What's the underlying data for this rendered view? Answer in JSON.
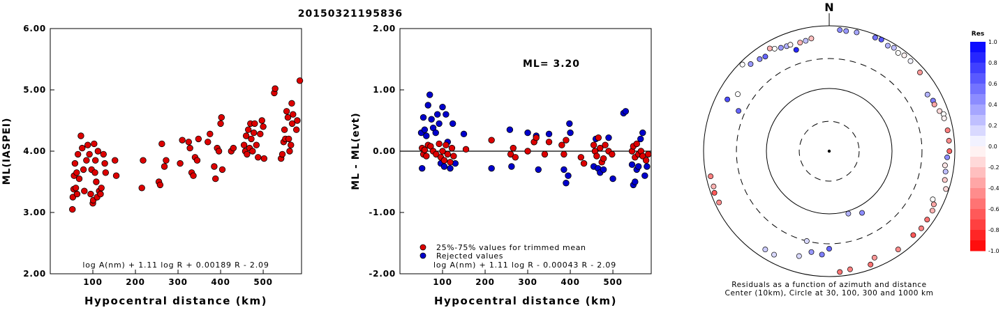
{
  "page_title": "20150321195836",
  "colors": {
    "accepted": "#dd0000",
    "rejected": "#0000cc",
    "marker_edge": "#000000",
    "scale_positive": "#0000ff",
    "scale_negative": "#ff0000"
  },
  "chart_data": [
    {
      "type": "scatter",
      "name": "ml-distance",
      "xlabel": "Hypocentral distance (km)",
      "ylabel": "ML(IASPEI)",
      "xlim": [
        0,
        590
      ],
      "ylim": [
        2.0,
        6.0
      ],
      "xticks": [
        {
          "value": 100,
          "label": "100"
        },
        {
          "value": 200,
          "label": "200"
        },
        {
          "value": 300,
          "label": "300"
        },
        {
          "value": 400,
          "label": "400"
        },
        {
          "value": 500,
          "label": "500"
        }
      ],
      "yticks": [
        {
          "value": 2.0,
          "label": "2.00"
        },
        {
          "value": 3.0,
          "label": "3.00"
        },
        {
          "value": 4.0,
          "label": "4.00"
        },
        {
          "value": 5.0,
          "label": "5.00"
        },
        {
          "value": 6.0,
          "label": "6.00"
        }
      ],
      "formula": "log A(nm) + 1.11 log R + 0.00189 R - 2.09",
      "points": [
        [
          52,
          3.05
        ],
        [
          53,
          3.25
        ],
        [
          55,
          3.38
        ],
        [
          56,
          3.6
        ],
        [
          58,
          3.8
        ],
        [
          60,
          3.4
        ],
        [
          62,
          3.65
        ],
        [
          63,
          3.3
        ],
        [
          65,
          3.95
        ],
        [
          68,
          3.55
        ],
        [
          72,
          4.25
        ],
        [
          75,
          4.05
        ],
        [
          78,
          3.7
        ],
        [
          80,
          3.35
        ],
        [
          85,
          3.85
        ],
        [
          88,
          4.1
        ],
        [
          92,
          3.95
        ],
        [
          95,
          3.3
        ],
        [
          97,
          3.7
        ],
        [
          100,
          3.15
        ],
        [
          101,
          3.2
        ],
        [
          103,
          4.12
        ],
        [
          105,
          3.65
        ],
        [
          106,
          3.85
        ],
        [
          108,
          3.5
        ],
        [
          110,
          3.25
        ],
        [
          112,
          4.0
        ],
        [
          115,
          3.35
        ],
        [
          118,
          3.3
        ],
        [
          120,
          3.4
        ],
        [
          125,
          3.95
        ],
        [
          128,
          3.8
        ],
        [
          130,
          3.65
        ],
        [
          152,
          3.85
        ],
        [
          155,
          3.6
        ],
        [
          215,
          3.4
        ],
        [
          218,
          3.85
        ],
        [
          255,
          3.5
        ],
        [
          258,
          3.45
        ],
        [
          262,
          4.12
        ],
        [
          268,
          3.75
        ],
        [
          272,
          3.85
        ],
        [
          305,
          3.8
        ],
        [
          310,
          4.18
        ],
        [
          325,
          4.15
        ],
        [
          328,
          4.05
        ],
        [
          332,
          3.65
        ],
        [
          336,
          3.6
        ],
        [
          340,
          3.9
        ],
        [
          345,
          3.85
        ],
        [
          348,
          4.2
        ],
        [
          370,
          4.15
        ],
        [
          375,
          4.28
        ],
        [
          385,
          3.75
        ],
        [
          388,
          3.55
        ],
        [
          392,
          4.05
        ],
        [
          396,
          4.0
        ],
        [
          400,
          4.45
        ],
        [
          402,
          4.55
        ],
        [
          404,
          3.7
        ],
        [
          425,
          4.0
        ],
        [
          430,
          4.05
        ],
        [
          455,
          4.1
        ],
        [
          458,
          4.0
        ],
        [
          460,
          4.25
        ],
        [
          462,
          3.95
        ],
        [
          465,
          4.35
        ],
        [
          468,
          4.05
        ],
        [
          470,
          4.45
        ],
        [
          472,
          4.2
        ],
        [
          475,
          4.0
        ],
        [
          478,
          4.3
        ],
        [
          480,
          4.45
        ],
        [
          484,
          4.1
        ],
        [
          488,
          3.9
        ],
        [
          493,
          4.28
        ],
        [
          497,
          4.5
        ],
        [
          500,
          4.4
        ],
        [
          502,
          3.88
        ],
        [
          526,
          4.95
        ],
        [
          528,
          5.02
        ],
        [
          542,
          3.88
        ],
        [
          545,
          3.95
        ],
        [
          548,
          4.15
        ],
        [
          550,
          4.35
        ],
        [
          552,
          4.2
        ],
        [
          555,
          4.65
        ],
        [
          558,
          4.55
        ],
        [
          560,
          4.2
        ],
        [
          562,
          4.0
        ],
        [
          565,
          4.1
        ],
        [
          567,
          4.78
        ],
        [
          568,
          4.45
        ],
        [
          570,
          4.6
        ],
        [
          578,
          4.35
        ],
        [
          580,
          4.5
        ],
        [
          586,
          5.15
        ]
      ]
    },
    {
      "type": "scatter",
      "name": "residual-distance",
      "xlabel": "Hypocentral distance (km)",
      "ylabel": "ML - ML(evt)",
      "xlim": [
        0,
        590
      ],
      "ylim": [
        -2.0,
        2.0
      ],
      "xticks": [
        {
          "value": 100,
          "label": "100"
        },
        {
          "value": 200,
          "label": "200"
        },
        {
          "value": 300,
          "label": "300"
        },
        {
          "value": 400,
          "label": "400"
        },
        {
          "value": 500,
          "label": "500"
        }
      ],
      "yticks": [
        {
          "value": -2.0,
          "label": "-2.00"
        },
        {
          "value": -1.0,
          "label": "-1.00"
        },
        {
          "value": 0.0,
          "label": "0.00"
        },
        {
          "value": 1.0,
          "label": "1.00"
        },
        {
          "value": 2.0,
          "label": "2.00"
        }
      ],
      "ml_label": "ML= 3.20",
      "formula": "log A(nm) + 1.11 log R - 0.00043 R - 2.09",
      "legend": [
        {
          "label": "25%-75% values for trimmed mean",
          "color": "#dd0000"
        },
        {
          "label": "Rejected values",
          "color": "#0000cc"
        }
      ],
      "accepted": [
        [
          52,
          0.05
        ],
        [
          55,
          -0.05
        ],
        [
          58,
          0.02
        ],
        [
          62,
          -0.08
        ],
        [
          66,
          0.1
        ],
        [
          72,
          0.08
        ],
        [
          78,
          0.0
        ],
        [
          85,
          -0.05
        ],
        [
          92,
          0.12
        ],
        [
          96,
          -0.1
        ],
        [
          100,
          0.0
        ],
        [
          104,
          -0.15
        ],
        [
          108,
          0.1
        ],
        [
          112,
          -0.05
        ],
        [
          118,
          -0.18
        ],
        [
          122,
          0.05
        ],
        [
          126,
          -0.08
        ],
        [
          155,
          0.03
        ],
        [
          215,
          0.18
        ],
        [
          260,
          -0.05
        ],
        [
          266,
          0.05
        ],
        [
          271,
          -0.1
        ],
        [
          300,
          0.0
        ],
        [
          315,
          0.15
        ],
        [
          320,
          0.22
        ],
        [
          340,
          -0.05
        ],
        [
          350,
          0.15
        ],
        [
          380,
          0.1
        ],
        [
          385,
          -0.05
        ],
        [
          390,
          0.18
        ],
        [
          425,
          -0.1
        ],
        [
          432,
          -0.2
        ],
        [
          455,
          0.1
        ],
        [
          458,
          0.0
        ],
        [
          462,
          -0.08
        ],
        [
          466,
          0.22
        ],
        [
          470,
          0.05
        ],
        [
          474,
          -0.18
        ],
        [
          478,
          -0.12
        ],
        [
          482,
          0.1
        ],
        [
          490,
          0.0
        ],
        [
          498,
          -0.05
        ],
        [
          545,
          0.0
        ],
        [
          548,
          0.08
        ],
        [
          552,
          -0.1
        ],
        [
          556,
          0.12
        ],
        [
          560,
          -0.05
        ],
        [
          566,
          0.0
        ],
        [
          570,
          -0.08
        ],
        [
          578,
          -0.15
        ],
        [
          583,
          -0.05
        ]
      ],
      "rejected": [
        [
          50,
          0.3
        ],
        [
          52,
          -0.28
        ],
        [
          55,
          0.55
        ],
        [
          58,
          0.35
        ],
        [
          62,
          0.25
        ],
        [
          66,
          0.75
        ],
        [
          70,
          0.92
        ],
        [
          74,
          0.52
        ],
        [
          78,
          0.38
        ],
        [
          84,
          0.3
        ],
        [
          88,
          0.6
        ],
        [
          92,
          0.45
        ],
        [
          96,
          -0.2
        ],
        [
          100,
          0.72
        ],
        [
          104,
          -0.25
        ],
        [
          108,
          0.6
        ],
        [
          112,
          0.15
        ],
        [
          118,
          -0.28
        ],
        [
          124,
          0.45
        ],
        [
          130,
          -0.2
        ],
        [
          150,
          0.28
        ],
        [
          215,
          -0.28
        ],
        [
          258,
          0.35
        ],
        [
          262,
          -0.25
        ],
        [
          300,
          0.3
        ],
        [
          315,
          0.15
        ],
        [
          320,
          0.25
        ],
        [
          325,
          -0.3
        ],
        [
          350,
          0.28
        ],
        [
          385,
          -0.3
        ],
        [
          390,
          -0.52
        ],
        [
          395,
          -0.4
        ],
        [
          398,
          0.45
        ],
        [
          400,
          0.3
        ],
        [
          455,
          -0.25
        ],
        [
          460,
          0.2
        ],
        [
          465,
          -0.28
        ],
        [
          470,
          -0.35
        ],
        [
          478,
          -0.3
        ],
        [
          490,
          0.22
        ],
        [
          500,
          -0.45
        ],
        [
          525,
          0.62
        ],
        [
          530,
          0.65
        ],
        [
          545,
          -0.22
        ],
        [
          548,
          -0.55
        ],
        [
          552,
          -0.5
        ],
        [
          556,
          -0.3
        ],
        [
          560,
          -0.25
        ],
        [
          565,
          0.2
        ],
        [
          570,
          0.3
        ],
        [
          575,
          -0.4
        ],
        [
          580,
          -0.25
        ]
      ]
    },
    {
      "type": "scatter",
      "name": "azimuth-distance-polar",
      "north_label": "N",
      "caption_line1": "Residuals as a function of azimuth and distance",
      "caption_line2": "Center (10km), Circle at 30, 100, 300 and 1000 km",
      "rings_km": [
        30,
        100,
        300,
        1000
      ],
      "ring_styles": [
        "dashed",
        "solid",
        "dashed",
        "solid"
      ],
      "points": [
        [
          5,
          870,
          0.45
        ],
        [
          8,
          860,
          0.4
        ],
        [
          13,
          880,
          0.35
        ],
        [
          22,
          900,
          0.55
        ],
        [
          25,
          920,
          0.65
        ],
        [
          29,
          840,
          0.3
        ],
        [
          32,
          880,
          0.25
        ],
        [
          35,
          820,
          0.0
        ],
        [
          38,
          870,
          -0.05
        ],
        [
          42,
          860,
          0.05
        ],
        [
          49,
          820,
          -0.4
        ],
        [
          60,
          640,
          0.3
        ],
        [
          64,
          690,
          0.5
        ],
        [
          66,
          680,
          -0.35
        ],
        [
          70,
          740,
          -0.15
        ],
        [
          72,
          820,
          0.0
        ],
        [
          74,
          800,
          -0.05
        ],
        [
          80,
          820,
          -0.5
        ],
        [
          85,
          820,
          -0.45
        ],
        [
          90,
          820,
          -0.6
        ],
        [
          93,
          760,
          0.45
        ],
        [
          97,
          720,
          -0.1
        ],
        [
          100,
          760,
          0.25
        ],
        [
          104,
          790,
          -0.2
        ],
        [
          108,
          900,
          -0.15
        ],
        [
          115,
          660,
          0.0
        ],
        [
          117,
          740,
          -0.35
        ],
        [
          120,
          790,
          -0.3
        ],
        [
          125,
          800,
          -0.55
        ],
        [
          130,
          820,
          -0.5
        ],
        [
          135,
          780,
          -0.65
        ],
        [
          145,
          820,
          -0.45
        ],
        [
          152,
          130,
          0.45
        ],
        [
          157,
          700,
          -0.4
        ],
        [
          160,
          840,
          -0.55
        ],
        [
          163,
          110,
          0.3
        ],
        [
          170,
          820,
          -0.5
        ],
        [
          175,
          860,
          -0.55
        ],
        [
          180,
          360,
          0.6
        ],
        [
          184,
          450,
          0.5
        ],
        [
          190,
          430,
          0.4
        ],
        [
          194,
          300,
          0.15
        ],
        [
          196,
          550,
          0.15
        ],
        [
          208,
          740,
          0.15
        ],
        [
          213,
          740,
          0.2
        ],
        [
          245,
          860,
          -0.45
        ],
        [
          250,
          880,
          -0.65
        ],
        [
          253,
          840,
          -0.3
        ],
        [
          258,
          850,
          -0.5
        ],
        [
          294,
          380,
          0.6
        ],
        [
          297,
          660,
          0.7
        ],
        [
          302,
          520,
          0.0
        ],
        [
          315,
          900,
          0.0
        ],
        [
          318,
          740,
          0.4
        ],
        [
          323,
          690,
          0.45
        ],
        [
          326,
          660,
          0.6
        ],
        [
          330,
          780,
          -0.3
        ],
        [
          332,
          710,
          0.0
        ],
        [
          335,
          660,
          0.4
        ],
        [
          338,
          640,
          0.3
        ],
        [
          340,
          640,
          -0.05
        ],
        [
          342,
          500,
          0.85
        ],
        [
          345,
          620,
          -0.3
        ],
        [
          348,
          630,
          0.25
        ],
        [
          351,
          660,
          -0.25
        ]
      ]
    }
  ],
  "color_scale": {
    "title": "Res",
    "ticks": [
      {
        "value": 1.0,
        "label": "1.0"
      },
      {
        "value": 0.8,
        "label": "0.8"
      },
      {
        "value": 0.6,
        "label": "0.6"
      },
      {
        "value": 0.4,
        "label": "0.4"
      },
      {
        "value": 0.2,
        "label": "0.2"
      },
      {
        "value": 0.0,
        "label": "0.0"
      },
      {
        "value": -0.2,
        "label": "-0.2"
      },
      {
        "value": -0.4,
        "label": "-0.4"
      },
      {
        "value": -0.6,
        "label": "-0.6"
      },
      {
        "value": -0.8,
        "label": "-0.8"
      },
      {
        "value": -1.0,
        "label": "-1.0"
      }
    ]
  }
}
